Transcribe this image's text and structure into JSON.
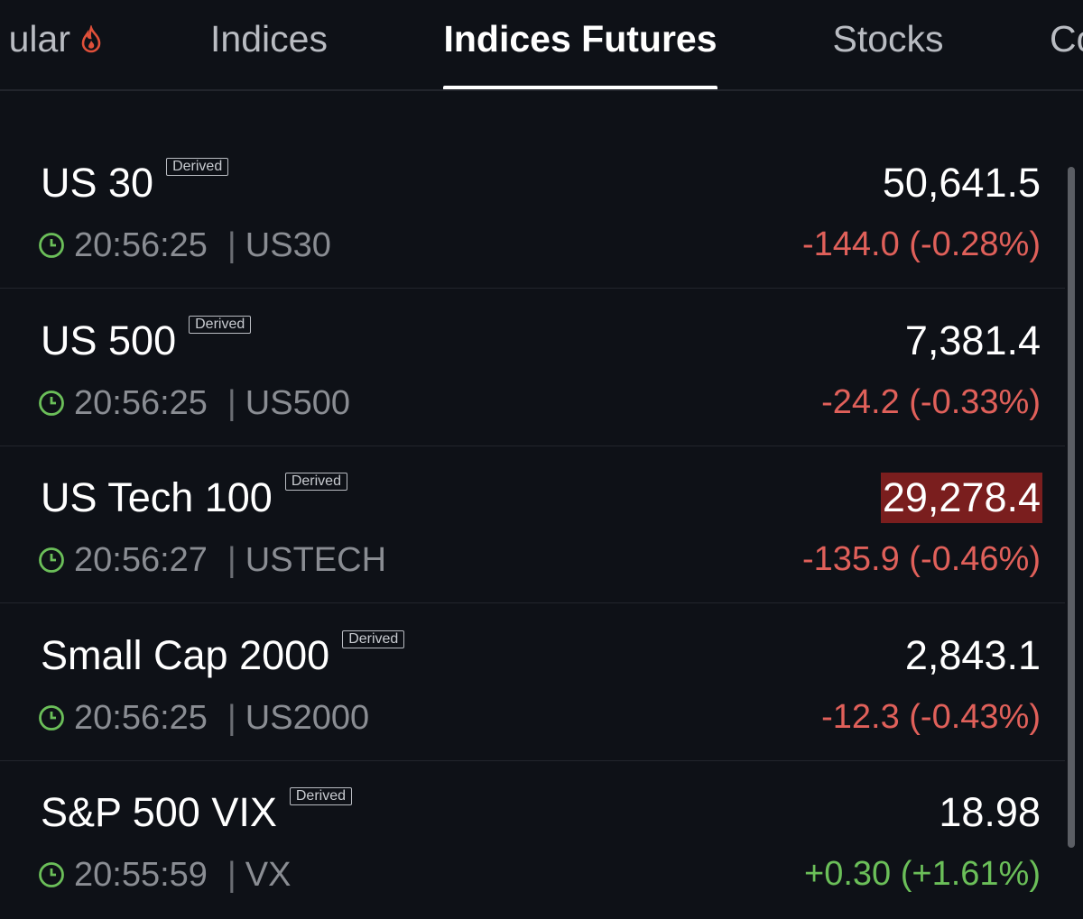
{
  "tabs": [
    {
      "label": "ular",
      "active": false
    },
    {
      "label": "Indices",
      "active": false
    },
    {
      "label": "Indices Futures",
      "active": true
    },
    {
      "label": "Stocks",
      "active": false
    },
    {
      "label": "Co",
      "active": false
    }
  ],
  "rows": [
    {
      "name": "US 30",
      "badge": "Derived",
      "time": "20:56:25",
      "symbol": "US30",
      "price": "50,641.5",
      "change": "-144.0 (-0.28%)",
      "highlighted": false
    },
    {
      "name": "US 500",
      "badge": "Derived",
      "time": "20:56:25",
      "symbol": "US500",
      "price": "7,381.4",
      "change": "-24.2 (-0.33%)",
      "highlighted": false
    },
    {
      "name": "US Tech 100",
      "badge": "Derived",
      "time": "20:56:27",
      "symbol": "USTECH",
      "price": "29,278.4",
      "change": "-135.9 (-0.46%)",
      "highlighted": true
    },
    {
      "name": "Small Cap 2000",
      "badge": "Derived",
      "time": "20:56:25",
      "symbol": "US2000",
      "price": "2,843.1",
      "change": "-12.3 (-0.43%)",
      "highlighted": false
    },
    {
      "name": "S&P 500 VIX",
      "badge": "Derived",
      "time": "20:55:59",
      "symbol": "VX",
      "price": "18.98",
      "change": "+0.30 (+1.61%)",
      "highlighted": false
    }
  ]
}
